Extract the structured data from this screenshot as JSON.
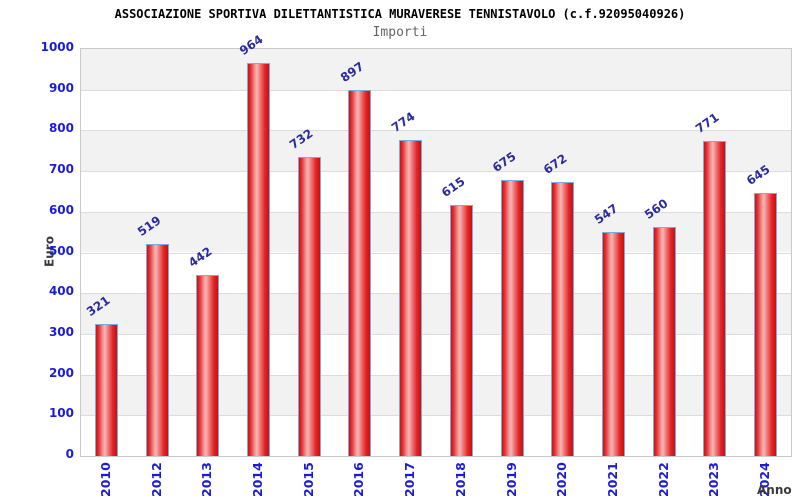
{
  "chart_data": {
    "type": "bar",
    "title": "ASSOCIAZIONE SPORTIVA DILETTANTISTICA MURAVERESE TENNISTAVOLO (c.f.92095040926)",
    "subtitle": "Importi",
    "xlabel": "Anno",
    "ylabel": "Euro",
    "categories": [
      "2010",
      "2012",
      "2013",
      "2014",
      "2015",
      "2016",
      "2017",
      "2018",
      "2019",
      "2020",
      "2021",
      "2022",
      "2023",
      "2024"
    ],
    "values": [
      321,
      519,
      442,
      964,
      732,
      897,
      774,
      615,
      675,
      672,
      547,
      560,
      771,
      645
    ],
    "ylim": [
      0,
      1000
    ],
    "ytick_step": 100,
    "ytick_labels": [
      "1000",
      "900",
      "800",
      "700",
      "600",
      "500",
      "400",
      "300",
      "200",
      "100",
      "0"
    ],
    "legend": "none",
    "grid": "alternating horizontal bands every 100 units",
    "colors": {
      "bar_fill_main": "#e01818",
      "bar_fill_light": "#f7b6b6",
      "bar_border": "#7aabdc",
      "axis_tick_text": "#1c1cd6",
      "value_label_text": "#2b2b9f",
      "band_gray": "#f2f2f2",
      "grid_line": "#dcdcdc",
      "plot_border": "#c9c9c9",
      "title_text": "#000000",
      "subtitle_text": "#666666",
      "axis_title_text": "#3a3a3a",
      "background": "#ffffff"
    }
  }
}
